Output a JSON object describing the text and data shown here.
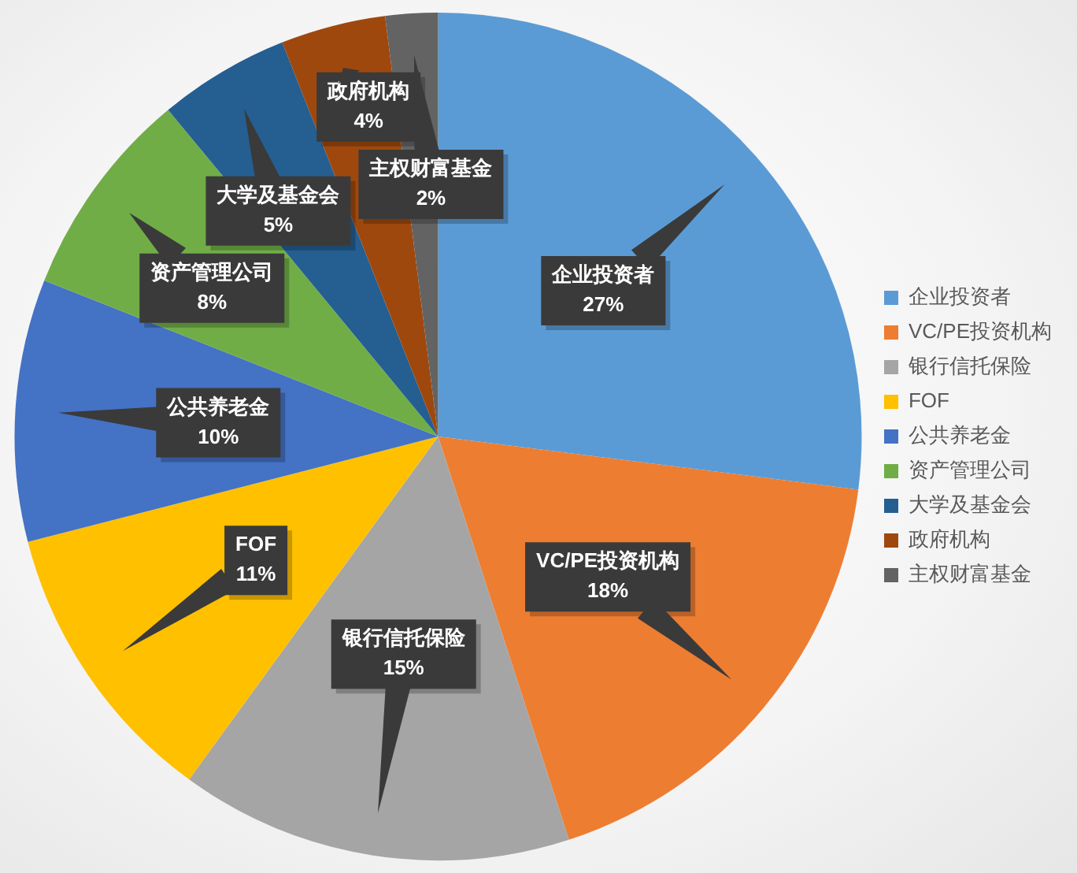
{
  "chart_data": {
    "type": "pie",
    "categories": [
      "企业投资者",
      "VC/PE投资机构",
      "银行信托保险",
      "FOF",
      "公共养老金",
      "资产管理公司",
      "大学及基金会",
      "政府机构",
      "主权财富基金"
    ],
    "values": [
      27,
      18,
      15,
      11,
      10,
      8,
      5,
      4,
      2
    ],
    "colors": [
      "#5b9bd5",
      "#ed7d31",
      "#a5a5a5",
      "#ffc000",
      "#4472c4",
      "#70ad47",
      "#255e91",
      "#9e480e",
      "#636363"
    ],
    "value_labels": [
      "27%",
      "18%",
      "15%",
      "11%",
      "10%",
      "8%",
      "5%",
      "4%",
      "2%"
    ],
    "legend": "right"
  }
}
